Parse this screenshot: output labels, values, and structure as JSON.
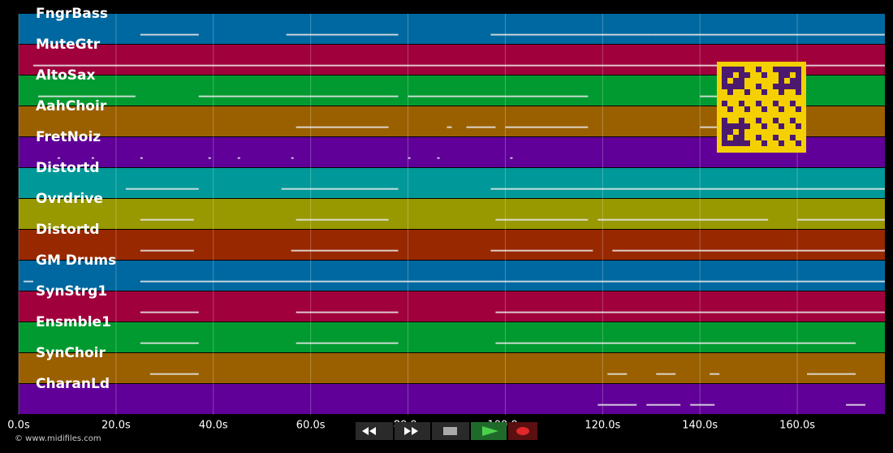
{
  "tracks": [
    {
      "name": "FngrBass",
      "color": "#0068a0",
      "notes": [
        [
          25,
          37
        ],
        [
          55,
          78
        ],
        [
          97,
          130
        ],
        [
          130,
          178
        ]
      ]
    },
    {
      "name": "MuteGtr",
      "color": "#a0003c",
      "notes": [
        [
          3,
          178
        ]
      ]
    },
    {
      "name": "AltoSax",
      "color": "#009a30",
      "notes": [
        [
          4,
          24
        ],
        [
          37,
          78
        ],
        [
          80,
          117
        ],
        [
          140,
          148
        ]
      ]
    },
    {
      "name": "AahChoir",
      "color": "#9a6000",
      "notes": [
        [
          57,
          76
        ],
        [
          88,
          89
        ],
        [
          92,
          98
        ],
        [
          100,
          117
        ],
        [
          140,
          145
        ]
      ]
    },
    {
      "name": "FretNoiz",
      "color": "#600098",
      "notes": [
        [
          8,
          8.5
        ],
        [
          15,
          15.5
        ],
        [
          25,
          25.5
        ],
        [
          39,
          39.5
        ],
        [
          45,
          45.5
        ],
        [
          56,
          56.5
        ],
        [
          80,
          80.5
        ],
        [
          86,
          86.5
        ],
        [
          101,
          101.5
        ]
      ]
    },
    {
      "name": "Distortd",
      "color": "#009898",
      "notes": [
        [
          22,
          37
        ],
        [
          54,
          78
        ],
        [
          97,
          178
        ]
      ]
    },
    {
      "name": "Ovrdrive",
      "color": "#989800",
      "notes": [
        [
          25,
          36
        ],
        [
          57,
          76
        ],
        [
          98,
          117
        ],
        [
          119,
          154
        ],
        [
          160,
          170
        ],
        [
          170,
          178
        ]
      ]
    },
    {
      "name": "Distortd",
      "color": "#982800",
      "notes": [
        [
          25,
          36
        ],
        [
          56,
          78
        ],
        [
          97,
          118
        ],
        [
          122,
          178
        ]
      ]
    },
    {
      "name": "GM Drums",
      "color": "#0068a0",
      "notes": [
        [
          1,
          3
        ],
        [
          25,
          178
        ]
      ]
    },
    {
      "name": "SynStrg1",
      "color": "#a0003c",
      "notes": [
        [
          25,
          37
        ],
        [
          57,
          78
        ],
        [
          98,
          178
        ]
      ]
    },
    {
      "name": "Ensmble1",
      "color": "#009a30",
      "notes": [
        [
          25,
          37
        ],
        [
          57,
          78
        ],
        [
          98,
          172
        ]
      ]
    },
    {
      "name": "SynChoir",
      "color": "#9a6000",
      "notes": [
        [
          27,
          37
        ],
        [
          121,
          125
        ],
        [
          131,
          135
        ],
        [
          142,
          144
        ],
        [
          162,
          172
        ]
      ]
    },
    {
      "name": "CharanLd",
      "color": "#600098",
      "notes": [
        [
          119,
          127
        ],
        [
          129,
          136
        ],
        [
          138,
          143
        ],
        [
          170,
          174
        ]
      ]
    }
  ],
  "xlim": [
    0,
    178
  ],
  "xticks": [
    {
      "value": 0,
      "label": "0.0s"
    },
    {
      "value": 20,
      "label": "20.0s"
    },
    {
      "value": 40,
      "label": "40.0s"
    },
    {
      "value": 60,
      "label": "60.0s"
    },
    {
      "value": 80,
      "label": "80.0s"
    },
    {
      "value": 100,
      "label": "100.0s"
    },
    {
      "value": 120,
      "label": "120.0s"
    },
    {
      "value": 140,
      "label": "140.0s"
    },
    {
      "value": 160,
      "label": "160.0s"
    }
  ],
  "copyright": "© www.midifiles.com"
}
